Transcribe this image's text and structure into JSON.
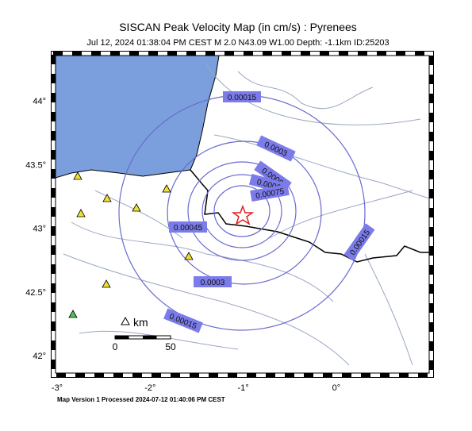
{
  "header": {
    "title": "SISCAN Peak Velocity Map (in cm/s) : Pyrenees",
    "subtitle": "Jul 12, 2024 01:38:04 PM CEST   M 2.0   N43.09 W1.00   Depth: -1.1km   ID:25203"
  },
  "map": {
    "lon_ticks": [
      {
        "value": -3,
        "label": "-3°"
      },
      {
        "value": -2,
        "label": "-2°"
      },
      {
        "value": -1,
        "label": "-1°"
      },
      {
        "value": 0,
        "label": "0°"
      }
    ],
    "lat_ticks": [
      {
        "value": 44,
        "label": "44°"
      },
      {
        "value": 43.5,
        "label": "43.5°"
      },
      {
        "value": 43,
        "label": "43°"
      },
      {
        "value": 42.5,
        "label": "42.5°"
      },
      {
        "value": 42,
        "label": "42°"
      }
    ],
    "contour_labels": [
      "0.00015",
      "0.00015",
      "0.00015",
      "0.0003",
      "0.0003",
      "0.00045",
      "0.0006",
      "0.0006",
      "0.00075"
    ],
    "scale": {
      "unit": "km",
      "start": "0",
      "end": "50"
    }
  },
  "footer": "Map Version 1 Processed 2024-07-12 01:40:06 PM CEST"
}
